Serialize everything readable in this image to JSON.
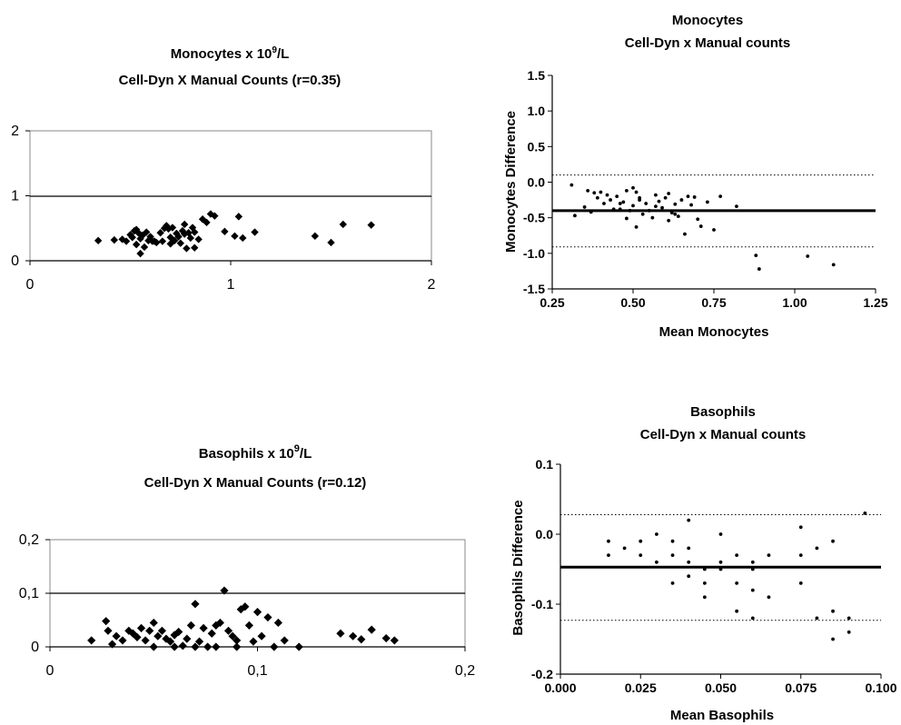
{
  "chart_data": [
    {
      "id": "mono_scatter",
      "type": "scatter",
      "title_line1_main": "Monocytes x 10",
      "title_line1_sup": "9",
      "title_line1_tail": "/L",
      "title_line2": "Cell-Dyn X Manual Counts (r=0.35)",
      "xlabel": "",
      "ylabel": "",
      "xlim": [
        0,
        2
      ],
      "ylim": [
        0,
        2
      ],
      "xticks": [
        0,
        1,
        2
      ],
      "yticks": [
        0,
        1,
        2
      ],
      "xtick_labels": [
        "0",
        "1",
        "2"
      ],
      "ytick_labels": [
        "0",
        "1",
        "2"
      ],
      "grid": "horizontal",
      "x": [
        0.34,
        0.42,
        0.46,
        0.48,
        0.5,
        0.51,
        0.52,
        0.53,
        0.54,
        0.55,
        0.55,
        0.56,
        0.57,
        0.58,
        0.59,
        0.6,
        0.62,
        0.63,
        0.65,
        0.66,
        0.67,
        0.68,
        0.69,
        0.7,
        0.71,
        0.72,
        0.73,
        0.74,
        0.75,
        0.76,
        0.77,
        0.78,
        0.79,
        0.8,
        0.81,
        0.82,
        0.84,
        0.86,
        0.88,
        0.9,
        0.92,
        0.97,
        1.02,
        1.04,
        1.06,
        1.12,
        1.42,
        1.5,
        1.56,
        1.7,
        0.53,
        0.61,
        0.7,
        0.77,
        0.82
      ],
      "y": [
        0.31,
        0.32,
        0.33,
        0.3,
        0.4,
        0.36,
        0.46,
        0.25,
        0.43,
        0.11,
        0.34,
        0.39,
        0.21,
        0.44,
        0.31,
        0.37,
        0.3,
        0.28,
        0.43,
        0.3,
        0.5,
        0.54,
        0.49,
        0.26,
        0.51,
        0.31,
        0.42,
        0.37,
        0.27,
        0.46,
        0.56,
        0.19,
        0.43,
        0.35,
        0.51,
        0.44,
        0.33,
        0.64,
        0.59,
        0.72,
        0.69,
        0.45,
        0.38,
        0.68,
        0.35,
        0.44,
        0.38,
        0.28,
        0.56,
        0.55,
        0.48,
        0.3,
        0.36,
        0.41,
        0.2
      ]
    },
    {
      "id": "mono_ba",
      "type": "scatter",
      "title": "Monocytes",
      "subtitle": "Cell-Dyn x Manual counts",
      "xlabel": "Mean Monocytes",
      "ylabel": "Monocytes Difference",
      "xlim": [
        0.25,
        1.25
      ],
      "ylim": [
        -1.5,
        1.5
      ],
      "xticks": [
        0.25,
        0.5,
        0.75,
        1.0,
        1.25
      ],
      "yticks": [
        -1.5,
        -1.0,
        -0.5,
        0.0,
        0.5,
        1.0,
        1.5
      ],
      "xtick_labels": [
        "0.25",
        "0.50",
        "0.75",
        "1.00",
        "1.25"
      ],
      "ytick_labels": [
        "-1.5",
        "-1.0",
        "-0.5",
        "0.0",
        "0.5",
        "1.0",
        "1.5"
      ],
      "mean_line": -0.4,
      "limit_upper": 0.1,
      "limit_lower": -0.91,
      "x": [
        0.31,
        0.32,
        0.35,
        0.36,
        0.37,
        0.38,
        0.39,
        0.4,
        0.41,
        0.42,
        0.43,
        0.44,
        0.45,
        0.46,
        0.47,
        0.48,
        0.48,
        0.49,
        0.5,
        0.5,
        0.51,
        0.51,
        0.52,
        0.53,
        0.54,
        0.55,
        0.56,
        0.57,
        0.58,
        0.59,
        0.6,
        0.61,
        0.61,
        0.62,
        0.63,
        0.64,
        0.65,
        0.66,
        0.67,
        0.68,
        0.7,
        0.71,
        0.73,
        0.75,
        0.77,
        0.82,
        0.88,
        0.89,
        1.04,
        1.12,
        0.46,
        0.52,
        0.57,
        0.63,
        0.69
      ],
      "y": [
        -0.04,
        -0.47,
        -0.35,
        -0.12,
        -0.42,
        -0.15,
        -0.22,
        -0.14,
        -0.3,
        -0.18,
        -0.25,
        -0.38,
        -0.2,
        -0.3,
        -0.28,
        -0.51,
        -0.12,
        -0.4,
        -0.08,
        -0.33,
        -0.63,
        -0.14,
        -0.22,
        -0.45,
        -0.3,
        -0.4,
        -0.5,
        -0.34,
        -0.27,
        -0.36,
        -0.22,
        -0.16,
        -0.54,
        -0.43,
        -0.31,
        -0.48,
        -0.25,
        -0.73,
        -0.2,
        -0.32,
        -0.52,
        -0.62,
        -0.28,
        -0.67,
        -0.2,
        -0.34,
        -1.03,
        -1.22,
        -1.04,
        -1.16,
        -0.38,
        -0.25,
        -0.18,
        -0.45,
        -0.21
      ]
    },
    {
      "id": "baso_scatter",
      "type": "scatter",
      "title_line1_main": "Basophils x 10",
      "title_line1_sup": "9",
      "title_line1_tail": "/L",
      "title_line2": "Cell-Dyn X Manual Counts (r=0.12)",
      "xlabel": "",
      "ylabel": "",
      "xlim": [
        0,
        0.2
      ],
      "ylim": [
        0,
        0.2
      ],
      "xticks": [
        0,
        0.1,
        0.2
      ],
      "yticks": [
        0,
        0.1,
        0.2
      ],
      "xtick_labels": [
        "0",
        "0,1",
        "0,2"
      ],
      "ytick_labels": [
        "0",
        "0,1",
        "0,2"
      ],
      "grid": "horizontal",
      "x": [
        0.02,
        0.027,
        0.028,
        0.03,
        0.032,
        0.035,
        0.038,
        0.04,
        0.042,
        0.044,
        0.046,
        0.048,
        0.05,
        0.052,
        0.054,
        0.056,
        0.058,
        0.06,
        0.062,
        0.064,
        0.066,
        0.068,
        0.07,
        0.072,
        0.074,
        0.076,
        0.078,
        0.08,
        0.082,
        0.084,
        0.086,
        0.088,
        0.09,
        0.092,
        0.094,
        0.096,
        0.098,
        0.1,
        0.102,
        0.105,
        0.108,
        0.11,
        0.113,
        0.12,
        0.14,
        0.146,
        0.15,
        0.155,
        0.162,
        0.166,
        0.05,
        0.07,
        0.08,
        0.09,
        0.06
      ],
      "y": [
        0.012,
        0.048,
        0.03,
        0.005,
        0.02,
        0.012,
        0.03,
        0.025,
        0.018,
        0.035,
        0.012,
        0.03,
        0.045,
        0.02,
        0.03,
        0.015,
        0.01,
        0.022,
        0.028,
        0.002,
        0.015,
        0.04,
        0.08,
        0.01,
        0.035,
        0.0,
        0.025,
        0.04,
        0.045,
        0.105,
        0.03,
        0.02,
        0.012,
        0.07,
        0.075,
        0.04,
        0.01,
        0.065,
        0.02,
        0.055,
        0.0,
        0.045,
        0.012,
        0.0,
        0.025,
        0.02,
        0.014,
        0.032,
        0.016,
        0.012,
        0.0,
        0.0,
        0.0,
        0.0,
        0.0
      ]
    },
    {
      "id": "baso_ba",
      "type": "scatter",
      "title": "Basophils",
      "subtitle": "Cell-Dyn x Manual counts",
      "xlabel": "Mean Basophils",
      "ylabel": "Basophils Difference",
      "xlim": [
        0.0,
        0.1
      ],
      "ylim": [
        -0.2,
        0.1
      ],
      "xticks": [
        0.0,
        0.025,
        0.05,
        0.075,
        0.1
      ],
      "yticks": [
        -0.2,
        -0.1,
        0.0,
        0.1
      ],
      "xtick_labels": [
        "0.000",
        "0.025",
        "0.050",
        "0.075",
        "0.100"
      ],
      "ytick_labels": [
        "-0.2",
        "-0.1",
        "0.0",
        "0.1"
      ],
      "mean_line": -0.047,
      "limit_upper": 0.028,
      "limit_lower": -0.123,
      "x": [
        0.015,
        0.015,
        0.02,
        0.025,
        0.025,
        0.03,
        0.03,
        0.035,
        0.035,
        0.035,
        0.04,
        0.04,
        0.04,
        0.04,
        0.045,
        0.045,
        0.045,
        0.05,
        0.05,
        0.05,
        0.055,
        0.055,
        0.055,
        0.06,
        0.06,
        0.06,
        0.065,
        0.065,
        0.075,
        0.075,
        0.075,
        0.08,
        0.08,
        0.085,
        0.085,
        0.085,
        0.09,
        0.09,
        0.095,
        0.06
      ],
      "y": [
        -0.01,
        -0.03,
        -0.02,
        -0.01,
        -0.03,
        -0.04,
        0.0,
        -0.01,
        -0.03,
        -0.07,
        0.02,
        -0.02,
        -0.04,
        -0.06,
        -0.05,
        -0.07,
        -0.09,
        0.0,
        -0.04,
        -0.05,
        -0.03,
        -0.07,
        -0.11,
        -0.04,
        -0.08,
        -0.12,
        -0.03,
        -0.09,
        0.01,
        -0.03,
        -0.07,
        -0.02,
        -0.12,
        -0.01,
        -0.11,
        -0.15,
        -0.12,
        -0.14,
        0.03,
        -0.05
      ]
    }
  ]
}
